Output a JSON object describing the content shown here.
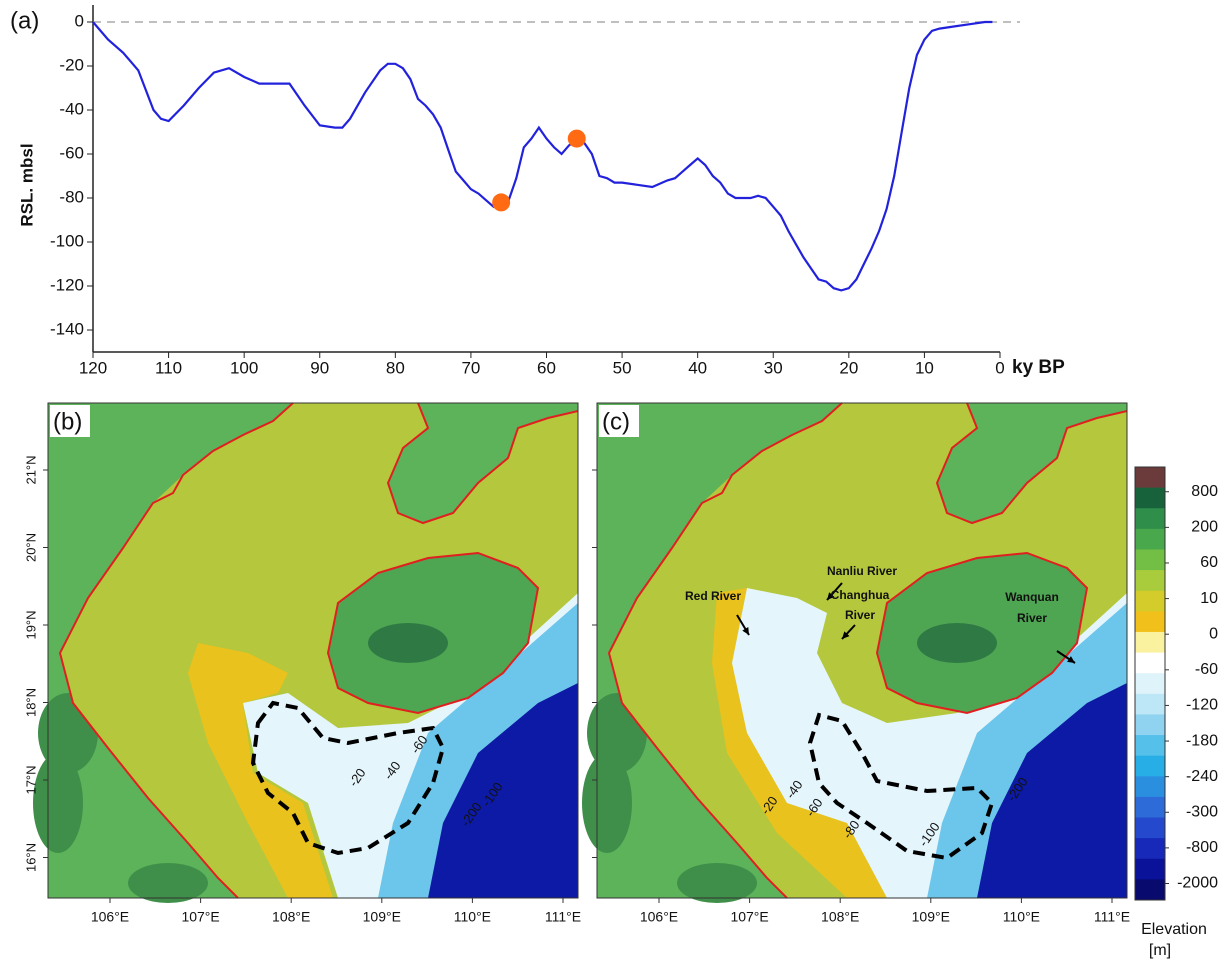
{
  "chart_data": {
    "type": "line",
    "panel_label": "(a)",
    "y_label": "RSL. mbsl",
    "x_label": "ky BP",
    "x": [
      120,
      118,
      116,
      114,
      112,
      111,
      110,
      108,
      106,
      104,
      102,
      100,
      98,
      96,
      94,
      92,
      90,
      88,
      87,
      86,
      84,
      82,
      81,
      80,
      79,
      78,
      77,
      76,
      75,
      74,
      73,
      72,
      71,
      70,
      69,
      68,
      67,
      66,
      65,
      64,
      63,
      62,
      61,
      60,
      59,
      58,
      57,
      56,
      55,
      54,
      53,
      52,
      51,
      50,
      48,
      46,
      44,
      43,
      42,
      41,
      40,
      39,
      38,
      37,
      36,
      35,
      34,
      33,
      32,
      31,
      30,
      29,
      28,
      27,
      26,
      25,
      24,
      23,
      22,
      21,
      20,
      19,
      18,
      17,
      16,
      15,
      14,
      13,
      12,
      11,
      10,
      9,
      8,
      6,
      4,
      2,
      1
    ],
    "values": [
      0,
      -8,
      -14,
      -22,
      -40,
      -44,
      -45,
      -38,
      -30,
      -23,
      -21,
      -25,
      -28,
      -28,
      -28,
      -38,
      -47,
      -48,
      -48,
      -44,
      -32,
      -22,
      -19,
      -19,
      -21,
      -26,
      -35,
      -38,
      -42,
      -48,
      -58,
      -68,
      -72,
      -76,
      -78,
      -81,
      -84,
      -85,
      -81,
      -71,
      -57,
      -53,
      -48,
      -53,
      -57,
      -60,
      -56,
      -54,
      -55,
      -60,
      -70,
      -71,
      -73,
      -73,
      -74,
      -75,
      -72,
      -71,
      -68,
      -65,
      -62,
      -65,
      -70,
      -73,
      -78,
      -80,
      -80,
      -80,
      -79,
      -80,
      -84,
      -88,
      -95,
      -101,
      -107,
      -112,
      -117,
      -118,
      -121,
      -122,
      -121,
      -117,
      -110,
      -103,
      -95,
      -85,
      -70,
      -50,
      -30,
      -15,
      -8,
      -4,
      -3,
      -2,
      -1,
      0,
      0
    ],
    "color": "#2222dd",
    "markers": {
      "x": [
        66,
        56
      ],
      "values": [
        -82,
        -53
      ],
      "color": "#ff6a13"
    },
    "reference_line": 0,
    "xlim": [
      120,
      0
    ],
    "ylim": [
      -150,
      0
    ],
    "xticks": [
      120,
      110,
      100,
      90,
      80,
      70,
      60,
      50,
      40,
      30,
      20,
      10,
      0
    ],
    "yticks": [
      0,
      -20,
      -40,
      -60,
      -80,
      -100,
      -120,
      -140
    ]
  },
  "longitudes": [
    "106°E",
    "107°E",
    "108°E",
    "109°E",
    "110°E",
    "111°E"
  ],
  "latitudes": [
    "21°N",
    "20°N",
    "19°N",
    "18°N",
    "17°N",
    "16°N"
  ],
  "maps": [
    {
      "label": "(b)",
      "contour_labels": [
        "-20",
        "-40",
        "-60",
        "-100",
        "-200"
      ]
    },
    {
      "label": "(c)",
      "contour_labels": [
        "-20",
        "-40",
        "-60",
        "-80",
        "-100",
        "-200"
      ],
      "rivers": [
        [
          "Red River"
        ],
        [
          "Nanliu River"
        ],
        [
          "Changhua",
          "River"
        ],
        [
          "Wanquan",
          "River"
        ]
      ]
    }
  ],
  "colorbar": {
    "ticks": [
      800,
      200,
      60,
      10,
      0,
      -60,
      -120,
      -180,
      -240,
      -300,
      -800,
      -2000
    ],
    "title": "Elevation",
    "unit": "[m]",
    "colors": [
      "#6b3a3a",
      "#17623a",
      "#2f8f4a",
      "#4aa84c",
      "#73bf45",
      "#a9cc3c",
      "#d4cc2a",
      "#f2c01a",
      "#fbf2a0",
      "#ffffff",
      "#dff3fb",
      "#bde6f6",
      "#8fd3f0",
      "#55c0ea",
      "#27aee6",
      "#2b8fe0",
      "#2c6bd8",
      "#2549cc",
      "#1729b8",
      "#0b129a",
      "#080a6e"
    ]
  }
}
